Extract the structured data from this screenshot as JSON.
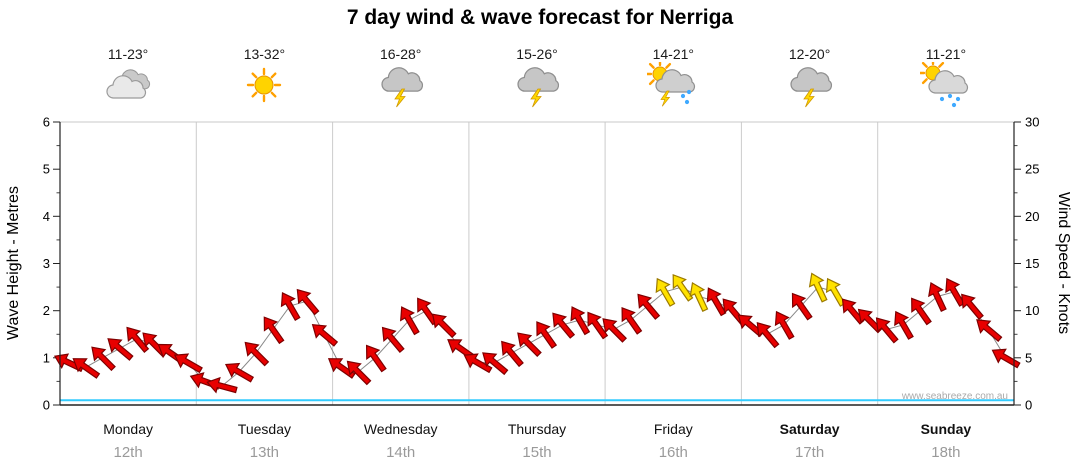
{
  "title": "7 day wind & wave forecast for Nerriga",
  "watermark": "www.seabreeze.com.au",
  "axes": {
    "left_label": "Wave Height - Metres",
    "right_label": "Wind Speed - Knots",
    "left_ticks": [
      "0",
      "1",
      "2",
      "3",
      "4",
      "5",
      "6"
    ],
    "right_ticks": [
      "0",
      "5",
      "10",
      "15",
      "20",
      "25",
      "30"
    ]
  },
  "days": [
    {
      "name": "Monday",
      "date": "12th",
      "temp": "11-23°",
      "icon": "cloudy",
      "bold": false
    },
    {
      "name": "Tuesday",
      "date": "13th",
      "temp": "13-32°",
      "icon": "sunny",
      "bold": false
    },
    {
      "name": "Wednesday",
      "date": "14th",
      "temp": "16-28°",
      "icon": "storm",
      "bold": false
    },
    {
      "name": "Thursday",
      "date": "15th",
      "temp": "15-26°",
      "icon": "storm",
      "bold": false
    },
    {
      "name": "Friday",
      "date": "16th",
      "temp": "14-21°",
      "icon": "sun-storm-rain",
      "bold": false
    },
    {
      "name": "Saturday",
      "date": "17th",
      "temp": "12-20°",
      "icon": "storm",
      "bold": true
    },
    {
      "name": "Sunday",
      "date": "18th",
      "temp": "11-21°",
      "icon": "sun-rain",
      "bold": true
    }
  ],
  "chart_data": {
    "type": "scatter",
    "subtype": "wind-direction-arrows",
    "title": "7 day wind & wave forecast for Nerriga",
    "categories": [
      "Monday 12th",
      "Tuesday 13th",
      "Wednesday 14th",
      "Thursday 15th",
      "Friday 16th",
      "Saturday 17th",
      "Sunday 18th"
    ],
    "ylabel_left": "Wave Height - Metres",
    "ylim_left": [
      0,
      6
    ],
    "ylabel_right": "Wind Speed - Knots",
    "ylim_right": [
      0,
      30
    ],
    "points_per_day": 8,
    "wind_speed_knots": [
      4.5,
      4.0,
      5.0,
      6.0,
      7.0,
      6.5,
      5.5,
      4.5,
      2.5,
      2.0,
      3.5,
      5.5,
      8.0,
      10.5,
      11.0,
      7.5,
      4.0,
      3.5,
      5.0,
      7.0,
      9.0,
      10.0,
      8.5,
      6.0,
      4.5,
      4.5,
      5.5,
      6.5,
      7.5,
      8.5,
      9.0,
      8.5,
      8.0,
      9.0,
      10.5,
      12.0,
      12.5,
      11.5,
      11.0,
      10.0,
      8.5,
      7.5,
      8.5,
      10.5,
      12.5,
      12.0,
      10.0,
      9.0,
      8.0,
      8.5,
      10.0,
      11.5,
      12.0,
      10.5,
      8.0,
      5.0
    ],
    "wind_dir_deg": [
      205,
      215,
      225,
      220,
      230,
      225,
      215,
      210,
      200,
      195,
      210,
      225,
      235,
      240,
      230,
      220,
      215,
      225,
      235,
      230,
      240,
      235,
      225,
      215,
      210,
      220,
      230,
      225,
      235,
      230,
      240,
      235,
      225,
      235,
      230,
      240,
      235,
      245,
      240,
      230,
      220,
      230,
      240,
      235,
      245,
      240,
      230,
      225,
      230,
      240,
      235,
      245,
      240,
      230,
      220,
      210
    ],
    "arrow_color": [
      "r",
      "r",
      "r",
      "r",
      "r",
      "r",
      "r",
      "r",
      "r",
      "r",
      "r",
      "r",
      "r",
      "r",
      "r",
      "r",
      "r",
      "r",
      "r",
      "r",
      "r",
      "r",
      "r",
      "r",
      "r",
      "r",
      "r",
      "r",
      "r",
      "r",
      "r",
      "r",
      "r",
      "r",
      "r",
      "y",
      "y",
      "y",
      "r",
      "r",
      "r",
      "r",
      "r",
      "r",
      "y",
      "y",
      "r",
      "r",
      "r",
      "r",
      "r",
      "r",
      "r",
      "r",
      "r",
      "r"
    ],
    "arrow_colors_hex": {
      "r": "#e80000",
      "y": "#ffe100"
    },
    "wave_height_m_constant": 0.1,
    "wave_line_color": "#33ccff",
    "grid": "vertical-day-separators",
    "legend": "none"
  }
}
